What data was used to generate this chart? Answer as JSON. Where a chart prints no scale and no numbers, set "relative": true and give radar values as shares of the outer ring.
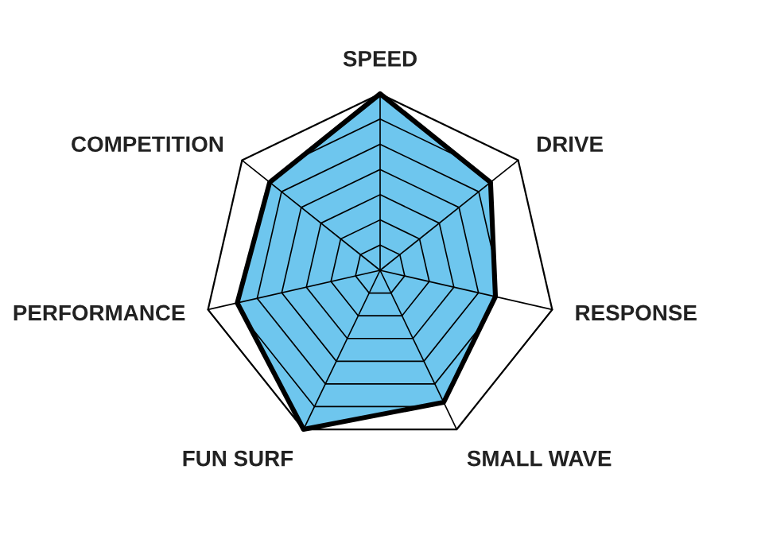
{
  "chart_data": {
    "type": "radar",
    "relative": true,
    "grid": true,
    "categories": [
      "SPEED",
      "DRIVE",
      "RESPONSE",
      "SMALL WAVE",
      "FUN SURF",
      "PERFORMANCE",
      "COMPETITION"
    ],
    "series": [
      {
        "color": "#6ec6ee",
        "values": [
          1,
          0.8,
          0.67,
          0.83,
          1,
          0.83,
          0.8
        ]
      }
    ]
  }
}
